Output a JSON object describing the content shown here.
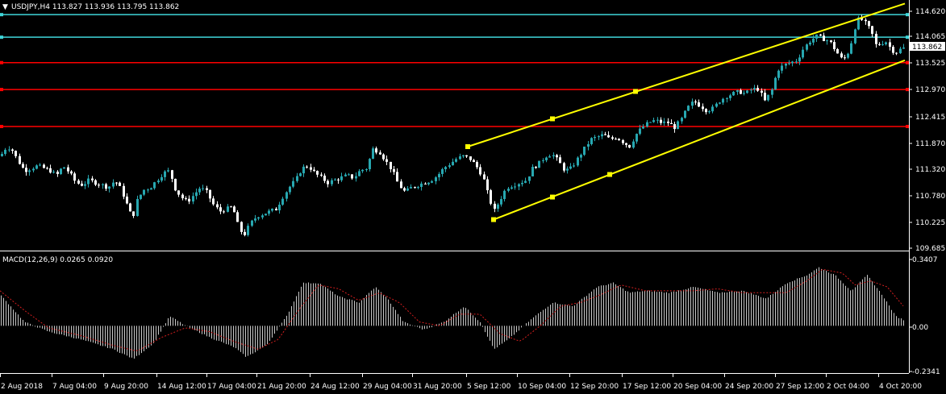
{
  "header": {
    "collapse_glyph": "▼",
    "main_title": "USDJPY,H4  113.827 113.936 113.795 113.862",
    "macd_title": "MACD(12,26,9) 0.0265 0.0920"
  },
  "colors": {
    "background": "#000000",
    "bull_candle": "#27a7b0",
    "bear_candle": "#ffffff",
    "trendline": "#ffff00",
    "support_resistance": "#ff0000",
    "cyan_level": "#3fd6d9",
    "signal_line": "#d11e1e",
    "histogram": "#c8c8c8",
    "axis": "#ffffff"
  },
  "price_axis": {
    "ticks": [
      "114.620",
      "114.065",
      "113.525",
      "112.970",
      "112.415",
      "111.870",
      "111.320",
      "110.780",
      "110.225",
      "109.685"
    ],
    "current_price_label": "113.862"
  },
  "macd_axis": {
    "ticks": [
      "0.3407",
      "0.00",
      "-0.2341"
    ]
  },
  "time_axis": {
    "labels": [
      "2 Aug 2018",
      "7 Aug 04:00",
      "9 Aug 20:00",
      "14 Aug 12:00",
      "17 Aug 04:00",
      "21 Aug 20:00",
      "24 Aug 12:00",
      "29 Aug 04:00",
      "31 Aug 20:00",
      "5 Sep 12:00",
      "10 Sep 04:00",
      "12 Sep 20:00",
      "17 Sep 12:00",
      "20 Sep 04:00",
      "24 Sep 20:00",
      "27 Sep 12:00",
      "2 Oct 04:00",
      "4 Oct 20:00"
    ]
  },
  "chart_data": [
    {
      "type": "candlestick",
      "symbol": "USDJPY",
      "timeframe": "H4",
      "ohlc_last": {
        "open": 113.827,
        "high": 113.936,
        "low": 113.795,
        "close": 113.862
      },
      "ylim": [
        109.5,
        114.75
      ],
      "close_path": [
        {
          "x": 0,
          "y": 111.6
        },
        {
          "x": 8,
          "y": 111.8
        },
        {
          "x": 14,
          "y": 111.75
        },
        {
          "x": 22,
          "y": 111.5
        },
        {
          "x": 30,
          "y": 111.3
        },
        {
          "x": 38,
          "y": 111.35
        },
        {
          "x": 46,
          "y": 111.4
        },
        {
          "x": 54,
          "y": 111.35
        },
        {
          "x": 62,
          "y": 111.3
        },
        {
          "x": 70,
          "y": 111.2
        },
        {
          "x": 78,
          "y": 111.4
        },
        {
          "x": 86,
          "y": 111.25
        },
        {
          "x": 94,
          "y": 111.05
        },
        {
          "x": 102,
          "y": 111.0
        },
        {
          "x": 110,
          "y": 111.1
        },
        {
          "x": 118,
          "y": 111.05
        },
        {
          "x": 126,
          "y": 111.0
        },
        {
          "x": 134,
          "y": 110.95
        },
        {
          "x": 142,
          "y": 111.1
        },
        {
          "x": 150,
          "y": 110.9
        },
        {
          "x": 158,
          "y": 110.55
        },
        {
          "x": 164,
          "y": 110.3
        },
        {
          "x": 170,
          "y": 110.7
        },
        {
          "x": 178,
          "y": 110.9
        },
        {
          "x": 186,
          "y": 110.95
        },
        {
          "x": 194,
          "y": 111.1
        },
        {
          "x": 202,
          "y": 111.25
        },
        {
          "x": 210,
          "y": 111.3
        },
        {
          "x": 216,
          "y": 110.95
        },
        {
          "x": 224,
          "y": 110.75
        },
        {
          "x": 232,
          "y": 110.65
        },
        {
          "x": 240,
          "y": 110.8
        },
        {
          "x": 248,
          "y": 110.95
        },
        {
          "x": 256,
          "y": 110.85
        },
        {
          "x": 264,
          "y": 110.6
        },
        {
          "x": 272,
          "y": 110.45
        },
        {
          "x": 280,
          "y": 110.5
        },
        {
          "x": 288,
          "y": 110.55
        },
        {
          "x": 296,
          "y": 110.1
        },
        {
          "x": 302,
          "y": 109.95
        },
        {
          "x": 310,
          "y": 110.2
        },
        {
          "x": 318,
          "y": 110.35
        },
        {
          "x": 326,
          "y": 110.4
        },
        {
          "x": 334,
          "y": 110.45
        },
        {
          "x": 342,
          "y": 110.5
        },
        {
          "x": 350,
          "y": 110.75
        },
        {
          "x": 358,
          "y": 110.95
        },
        {
          "x": 366,
          "y": 111.1
        },
        {
          "x": 374,
          "y": 111.35
        },
        {
          "x": 382,
          "y": 111.4
        },
        {
          "x": 390,
          "y": 111.25
        },
        {
          "x": 398,
          "y": 111.15
        },
        {
          "x": 406,
          "y": 111.05
        },
        {
          "x": 414,
          "y": 111.1
        },
        {
          "x": 422,
          "y": 111.15
        },
        {
          "x": 430,
          "y": 111.2
        },
        {
          "x": 438,
          "y": 111.15
        },
        {
          "x": 446,
          "y": 111.3
        },
        {
          "x": 454,
          "y": 111.35
        },
        {
          "x": 462,
          "y": 111.75
        },
        {
          "x": 470,
          "y": 111.7
        },
        {
          "x": 478,
          "y": 111.5
        },
        {
          "x": 486,
          "y": 111.3
        },
        {
          "x": 494,
          "y": 111.0
        },
        {
          "x": 502,
          "y": 110.85
        },
        {
          "x": 510,
          "y": 110.95
        },
        {
          "x": 518,
          "y": 111.0
        },
        {
          "x": 526,
          "y": 111.05
        },
        {
          "x": 534,
          "y": 111.1
        },
        {
          "x": 542,
          "y": 111.2
        },
        {
          "x": 550,
          "y": 111.35
        },
        {
          "x": 558,
          "y": 111.45
        },
        {
          "x": 566,
          "y": 111.55
        },
        {
          "x": 574,
          "y": 111.6
        },
        {
          "x": 582,
          "y": 111.55
        },
        {
          "x": 590,
          "y": 111.4
        },
        {
          "x": 598,
          "y": 111.2
        },
        {
          "x": 604,
          "y": 110.85
        },
        {
          "x": 612,
          "y": 110.45
        },
        {
          "x": 620,
          "y": 110.7
        },
        {
          "x": 628,
          "y": 110.95
        },
        {
          "x": 636,
          "y": 111.0
        },
        {
          "x": 644,
          "y": 111.05
        },
        {
          "x": 652,
          "y": 111.1
        },
        {
          "x": 660,
          "y": 111.35
        },
        {
          "x": 668,
          "y": 111.45
        },
        {
          "x": 676,
          "y": 111.6
        },
        {
          "x": 684,
          "y": 111.65
        },
        {
          "x": 692,
          "y": 111.5
        },
        {
          "x": 700,
          "y": 111.3
        },
        {
          "x": 708,
          "y": 111.35
        },
        {
          "x": 716,
          "y": 111.55
        },
        {
          "x": 724,
          "y": 111.75
        },
        {
          "x": 732,
          "y": 111.95
        },
        {
          "x": 740,
          "y": 112.0
        },
        {
          "x": 748,
          "y": 112.05
        },
        {
          "x": 756,
          "y": 111.95
        },
        {
          "x": 764,
          "y": 112.0
        },
        {
          "x": 772,
          "y": 111.9
        },
        {
          "x": 780,
          "y": 111.8
        },
        {
          "x": 788,
          "y": 112.05
        },
        {
          "x": 796,
          "y": 112.2
        },
        {
          "x": 804,
          "y": 112.3
        },
        {
          "x": 812,
          "y": 112.35
        },
        {
          "x": 820,
          "y": 112.3
        },
        {
          "x": 828,
          "y": 112.3
        },
        {
          "x": 836,
          "y": 112.2
        },
        {
          "x": 844,
          "y": 112.35
        },
        {
          "x": 852,
          "y": 112.6
        },
        {
          "x": 860,
          "y": 112.75
        },
        {
          "x": 868,
          "y": 112.65
        },
        {
          "x": 876,
          "y": 112.55
        },
        {
          "x": 884,
          "y": 112.6
        },
        {
          "x": 892,
          "y": 112.75
        },
        {
          "x": 900,
          "y": 112.85
        },
        {
          "x": 908,
          "y": 112.9
        },
        {
          "x": 916,
          "y": 112.95
        },
        {
          "x": 924,
          "y": 112.9
        },
        {
          "x": 932,
          "y": 113.0
        },
        {
          "x": 940,
          "y": 113.0
        },
        {
          "x": 948,
          "y": 112.75
        },
        {
          "x": 956,
          "y": 112.95
        },
        {
          "x": 964,
          "y": 113.4
        },
        {
          "x": 972,
          "y": 113.5
        },
        {
          "x": 980,
          "y": 113.55
        },
        {
          "x": 988,
          "y": 113.6
        },
        {
          "x": 996,
          "y": 113.85
        },
        {
          "x": 1004,
          "y": 114.0
        },
        {
          "x": 1012,
          "y": 114.1
        },
        {
          "x": 1020,
          "y": 114.05
        },
        {
          "x": 1028,
          "y": 114.0
        },
        {
          "x": 1036,
          "y": 113.8
        },
        {
          "x": 1044,
          "y": 113.6
        },
        {
          "x": 1050,
          "y": 113.7
        },
        {
          "x": 1056,
          "y": 114.0
        },
        {
          "x": 1062,
          "y": 114.45
        },
        {
          "x": 1068,
          "y": 114.45
        },
        {
          "x": 1074,
          "y": 114.35
        },
        {
          "x": 1080,
          "y": 114.2
        },
        {
          "x": 1086,
          "y": 113.9
        },
        {
          "x": 1092,
          "y": 113.95
        },
        {
          "x": 1098,
          "y": 114.0
        },
        {
          "x": 1104,
          "y": 113.85
        },
        {
          "x": 1110,
          "y": 113.75
        },
        {
          "x": 1116,
          "y": 113.83
        },
        {
          "x": 1122,
          "y": 113.862
        }
      ],
      "horizontal_levels": [
        {
          "price": 114.55,
          "color": "#3fd6d9"
        },
        {
          "price": 114.08,
          "color": "#3fd6d9"
        },
        {
          "price": 113.55,
          "color": "#ff0000"
        },
        {
          "price": 112.99,
          "color": "#ff0000"
        },
        {
          "price": 112.22,
          "color": "#ff0000"
        }
      ],
      "trend_channel": [
        {
          "points": [
            {
              "x": 580,
              "y": 111.8
            },
            {
              "x": 1122,
              "y": 114.78
            }
          ],
          "markers": [
            {
              "x": 580,
              "y": 111.8
            },
            {
              "x": 685,
              "y": 112.38
            },
            {
              "x": 788,
              "y": 112.95
            }
          ]
        },
        {
          "points": [
            {
              "x": 612,
              "y": 110.28
            },
            {
              "x": 1122,
              "y": 113.6
            }
          ],
          "markers": [
            {
              "x": 612,
              "y": 110.28
            },
            {
              "x": 685,
              "y": 110.75
            },
            {
              "x": 756,
              "y": 111.22
            }
          ]
        }
      ]
    },
    {
      "type": "bar",
      "indicator": "MACD(12,26,9)",
      "macd": 0.0265,
      "signal": 0.092,
      "ylim": [
        -0.2341,
        0.3407
      ],
      "macd_path": [
        {
          "x": 0,
          "y": 0.16
        },
        {
          "x": 30,
          "y": 0.02
        },
        {
          "x": 60,
          "y": -0.03
        },
        {
          "x": 100,
          "y": -0.07
        },
        {
          "x": 140,
          "y": -0.12
        },
        {
          "x": 165,
          "y": -0.17
        },
        {
          "x": 190,
          "y": -0.09
        },
        {
          "x": 210,
          "y": 0.05
        },
        {
          "x": 230,
          "y": 0.0
        },
        {
          "x": 260,
          "y": -0.06
        },
        {
          "x": 290,
          "y": -0.11
        },
        {
          "x": 305,
          "y": -0.16
        },
        {
          "x": 330,
          "y": -0.1
        },
        {
          "x": 355,
          "y": 0.05
        },
        {
          "x": 375,
          "y": 0.22
        },
        {
          "x": 395,
          "y": 0.22
        },
        {
          "x": 420,
          "y": 0.15
        },
        {
          "x": 445,
          "y": 0.12
        },
        {
          "x": 465,
          "y": 0.2
        },
        {
          "x": 480,
          "y": 0.14
        },
        {
          "x": 500,
          "y": 0.02
        },
        {
          "x": 525,
          "y": -0.02
        },
        {
          "x": 550,
          "y": 0.02
        },
        {
          "x": 575,
          "y": 0.1
        },
        {
          "x": 595,
          "y": 0.02
        },
        {
          "x": 612,
          "y": -0.12
        },
        {
          "x": 630,
          "y": -0.07
        },
        {
          "x": 660,
          "y": 0.04
        },
        {
          "x": 685,
          "y": 0.12
        },
        {
          "x": 710,
          "y": 0.1
        },
        {
          "x": 740,
          "y": 0.2
        },
        {
          "x": 760,
          "y": 0.22
        },
        {
          "x": 780,
          "y": 0.17
        },
        {
          "x": 800,
          "y": 0.18
        },
        {
          "x": 830,
          "y": 0.17
        },
        {
          "x": 860,
          "y": 0.2
        },
        {
          "x": 890,
          "y": 0.17
        },
        {
          "x": 920,
          "y": 0.18
        },
        {
          "x": 950,
          "y": 0.14
        },
        {
          "x": 975,
          "y": 0.22
        },
        {
          "x": 1000,
          "y": 0.26
        },
        {
          "x": 1015,
          "y": 0.3
        },
        {
          "x": 1035,
          "y": 0.26
        },
        {
          "x": 1055,
          "y": 0.18
        },
        {
          "x": 1075,
          "y": 0.26
        },
        {
          "x": 1095,
          "y": 0.15
        },
        {
          "x": 1110,
          "y": 0.05
        },
        {
          "x": 1122,
          "y": 0.0265
        }
      ],
      "signal_path": [
        {
          "x": 0,
          "y": 0.18
        },
        {
          "x": 30,
          "y": 0.08
        },
        {
          "x": 60,
          "y": -0.01
        },
        {
          "x": 100,
          "y": -0.05
        },
        {
          "x": 140,
          "y": -0.1
        },
        {
          "x": 170,
          "y": -0.13
        },
        {
          "x": 200,
          "y": -0.06
        },
        {
          "x": 230,
          "y": -0.01
        },
        {
          "x": 260,
          "y": -0.03
        },
        {
          "x": 290,
          "y": -0.08
        },
        {
          "x": 320,
          "y": -0.12
        },
        {
          "x": 345,
          "y": -0.07
        },
        {
          "x": 370,
          "y": 0.08
        },
        {
          "x": 395,
          "y": 0.21
        },
        {
          "x": 420,
          "y": 0.19
        },
        {
          "x": 445,
          "y": 0.13
        },
        {
          "x": 470,
          "y": 0.17
        },
        {
          "x": 495,
          "y": 0.12
        },
        {
          "x": 520,
          "y": 0.02
        },
        {
          "x": 545,
          "y": 0.0
        },
        {
          "x": 570,
          "y": 0.06
        },
        {
          "x": 595,
          "y": 0.06
        },
        {
          "x": 620,
          "y": -0.04
        },
        {
          "x": 645,
          "y": -0.08
        },
        {
          "x": 670,
          "y": 0.0
        },
        {
          "x": 695,
          "y": 0.1
        },
        {
          "x": 720,
          "y": 0.12
        },
        {
          "x": 745,
          "y": 0.16
        },
        {
          "x": 770,
          "y": 0.21
        },
        {
          "x": 800,
          "y": 0.18
        },
        {
          "x": 830,
          "y": 0.18
        },
        {
          "x": 860,
          "y": 0.18
        },
        {
          "x": 890,
          "y": 0.19
        },
        {
          "x": 920,
          "y": 0.17
        },
        {
          "x": 950,
          "y": 0.17
        },
        {
          "x": 975,
          "y": 0.17
        },
        {
          "x": 1000,
          "y": 0.23
        },
        {
          "x": 1020,
          "y": 0.29
        },
        {
          "x": 1045,
          "y": 0.27
        },
        {
          "x": 1060,
          "y": 0.21
        },
        {
          "x": 1080,
          "y": 0.23
        },
        {
          "x": 1100,
          "y": 0.2
        },
        {
          "x": 1122,
          "y": 0.092
        }
      ]
    }
  ]
}
